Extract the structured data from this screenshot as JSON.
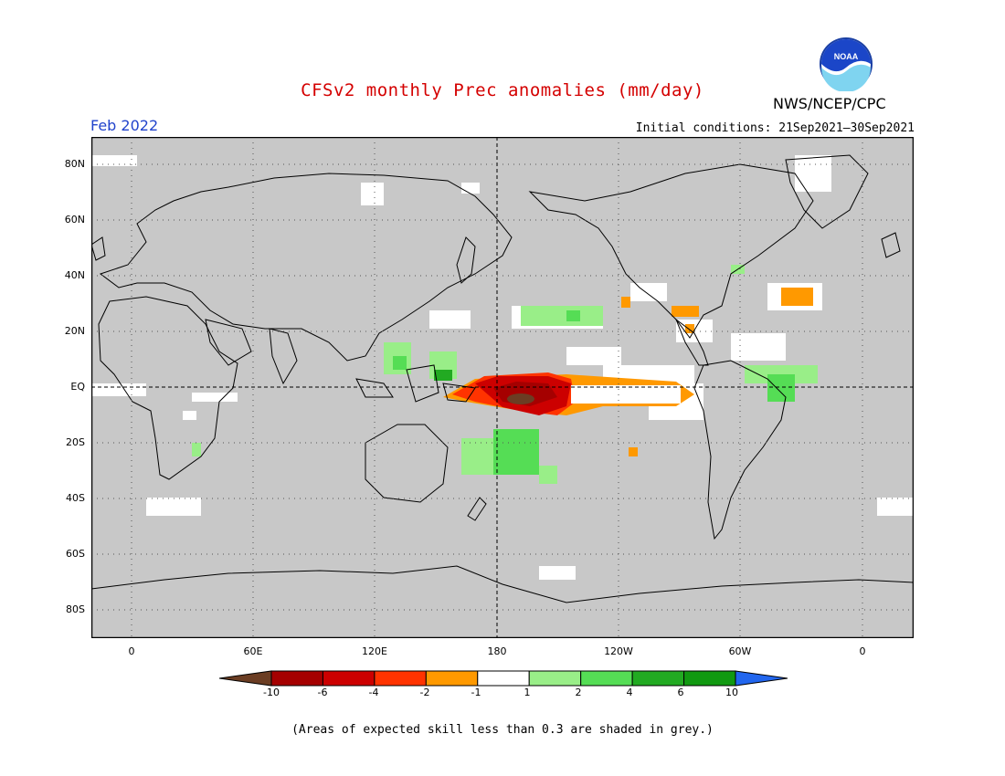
{
  "header": {
    "title": "CFSv2 monthly Prec anomalies (mm/day)",
    "month": "Feb 2022",
    "initial_conditions": "Initial conditions: 21Sep2021–30Sep2021",
    "agency": "NWS/NCEP/CPC",
    "logo_text": "NOAA"
  },
  "map": {
    "projection": "cylindrical-equidistant",
    "land_outline_color": "#000000",
    "masked_color": "#c8c8c8",
    "lat_labels": [
      "80N",
      "60N",
      "40N",
      "20N",
      "EQ",
      "20S",
      "40S",
      "60S",
      "80S"
    ],
    "lon_labels": [
      "0",
      "60E",
      "120E",
      "180",
      "120W",
      "60W",
      "0"
    ]
  },
  "legend": {
    "labels": [
      "-10",
      "-6",
      "-4",
      "-2",
      "-1",
      "1",
      "2",
      "4",
      "6",
      "10"
    ],
    "colors": [
      "#6b3d23",
      "#a50000",
      "#cc0000",
      "#ff3300",
      "#ff9900",
      "#ffffff",
      "#99ee88",
      "#55dd55",
      "#22aa22",
      "#119911",
      "#2266ee"
    ]
  },
  "footnote": "(Areas of expected skill less than 0.3 are shaded in grey.)"
}
